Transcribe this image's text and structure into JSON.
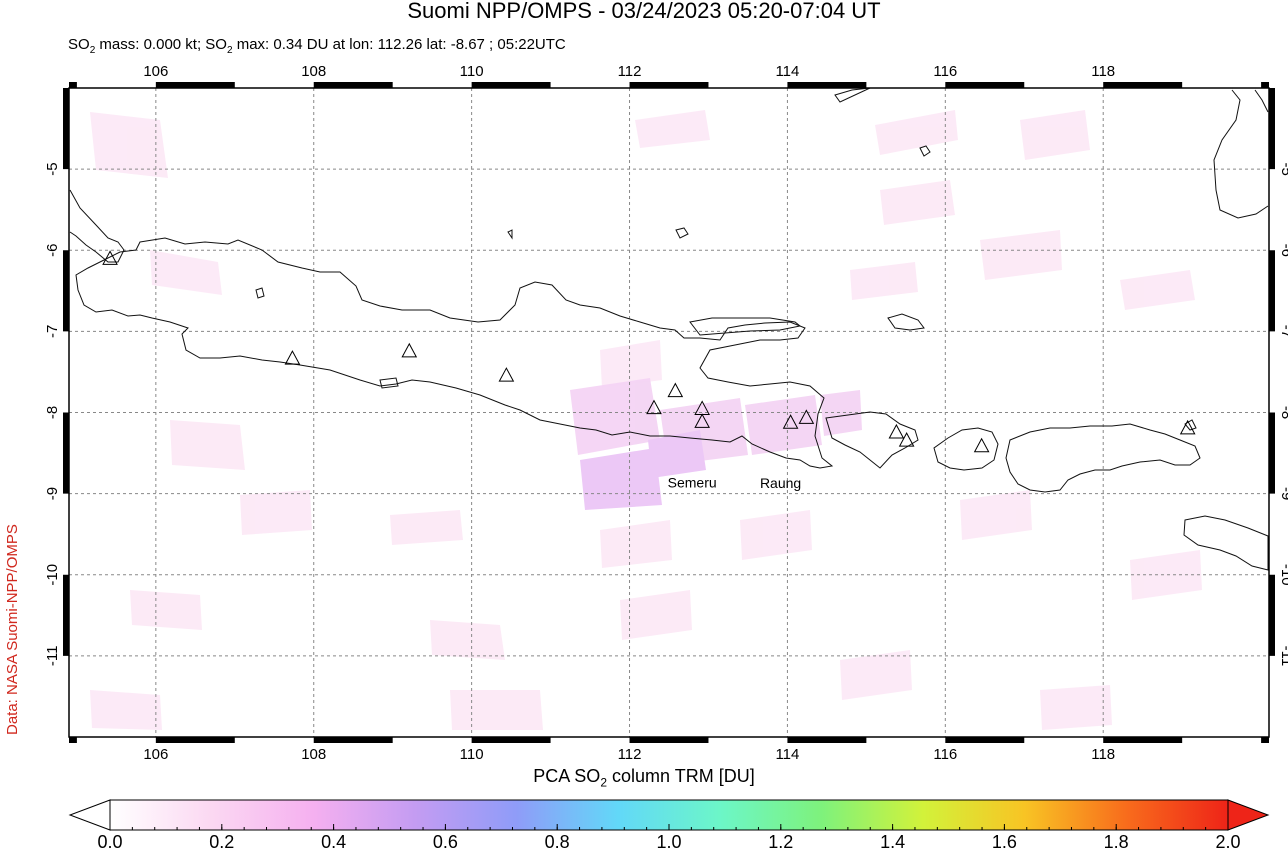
{
  "title": "Suomi NPP/OMPS - 03/24/2023 05:20-07:04 UT",
  "subtitle": {
    "mass_label": "SO",
    "mass_sub": "2",
    "mass_text": " mass: 0.000 kt; SO",
    "max_sub": "2",
    "max_text": " max: 0.34 DU at lon: 112.26 lat: -8.67 ; 05:22UTC"
  },
  "credit": "Data: NASA Suomi-NPP/OMPS",
  "map": {
    "lon_range": [
      104.9,
      120.1
    ],
    "lat_range": [
      -12.0,
      -4.0
    ],
    "lon_ticks": [
      "106",
      "108",
      "110",
      "112",
      "114",
      "116",
      "118"
    ],
    "lat_ticks": [
      "-5",
      "-6",
      "-7",
      "-8",
      "-9",
      "-10",
      "-11"
    ],
    "volcano_labels": [
      {
        "name": "Semeru",
        "lon": 112.92,
        "lat": -8.11
      },
      {
        "name": "Raung",
        "lon": 114.04,
        "lat": -8.12
      }
    ],
    "volcanoes": [
      {
        "lon": 105.42,
        "lat": -6.1
      },
      {
        "lon": 107.73,
        "lat": -7.33
      },
      {
        "lon": 109.21,
        "lat": -7.24
      },
      {
        "lon": 110.44,
        "lat": -7.54
      },
      {
        "lon": 112.31,
        "lat": -7.94
      },
      {
        "lon": 112.58,
        "lat": -7.73
      },
      {
        "lon": 112.92,
        "lat": -7.95
      },
      {
        "lon": 112.92,
        "lat": -8.11
      },
      {
        "lon": 114.04,
        "lat": -8.12
      },
      {
        "lon": 114.24,
        "lat": -8.06
      },
      {
        "lon": 115.38,
        "lat": -8.24
      },
      {
        "lon": 115.51,
        "lat": -8.34
      },
      {
        "lon": 116.46,
        "lat": -8.41
      },
      {
        "lon": 119.07,
        "lat": -8.19
      }
    ]
  },
  "colorbar": {
    "title_prefix": "PCA SO",
    "title_sub": "2",
    "title_suffix": " column TRM [DU]",
    "ticks": [
      "0.0",
      "0.2",
      "0.4",
      "0.6",
      "0.8",
      "1.0",
      "1.2",
      "1.4",
      "1.6",
      "1.8",
      "2.0"
    ],
    "colors": [
      "#ffffff",
      "#fbd8f2",
      "#f5b0f0",
      "#c49cf2",
      "#8f9cf8",
      "#62d8f8",
      "#6cf6c8",
      "#7ef27c",
      "#d2f23a",
      "#f8c424",
      "#f86c1c",
      "#ee2418"
    ]
  }
}
